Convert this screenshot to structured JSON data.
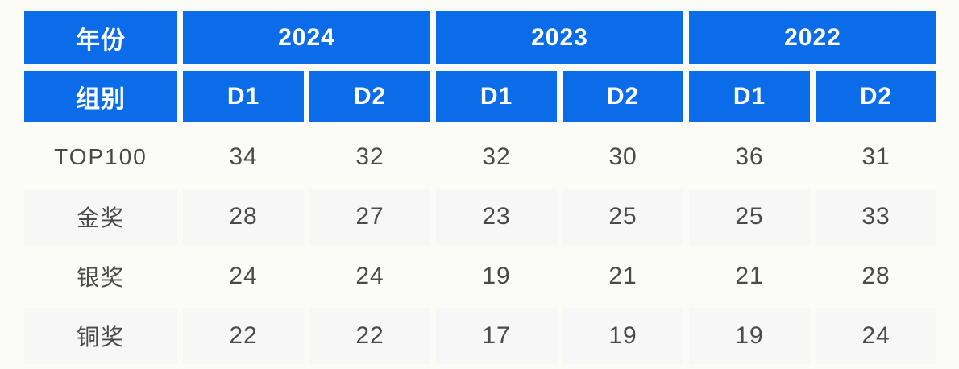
{
  "colors": {
    "header_bg": "#0b6ce9",
    "header_text": "#ffffff",
    "stripe_bg": "#f7f7f7",
    "data_text": "#4a4a4a",
    "page_bg": "#fbfbf8"
  },
  "chart_data": {
    "type": "table",
    "title": "",
    "corner_row1": "年份",
    "corner_row2": "组别",
    "year_headers": [
      "2024",
      "2023",
      "2022"
    ],
    "sub_headers": [
      "D1",
      "D2",
      "D1",
      "D2",
      "D1",
      "D2"
    ],
    "rows": [
      {
        "label": "TOP100",
        "values": [
          "34",
          "32",
          "32",
          "30",
          "36",
          "31"
        ]
      },
      {
        "label": "金奖",
        "values": [
          "28",
          "27",
          "23",
          "25",
          "25",
          "33"
        ]
      },
      {
        "label": "银奖",
        "values": [
          "24",
          "24",
          "19",
          "21",
          "21",
          "28"
        ]
      },
      {
        "label": "铜奖",
        "values": [
          "22",
          "22",
          "17",
          "19",
          "19",
          "24"
        ]
      }
    ]
  }
}
